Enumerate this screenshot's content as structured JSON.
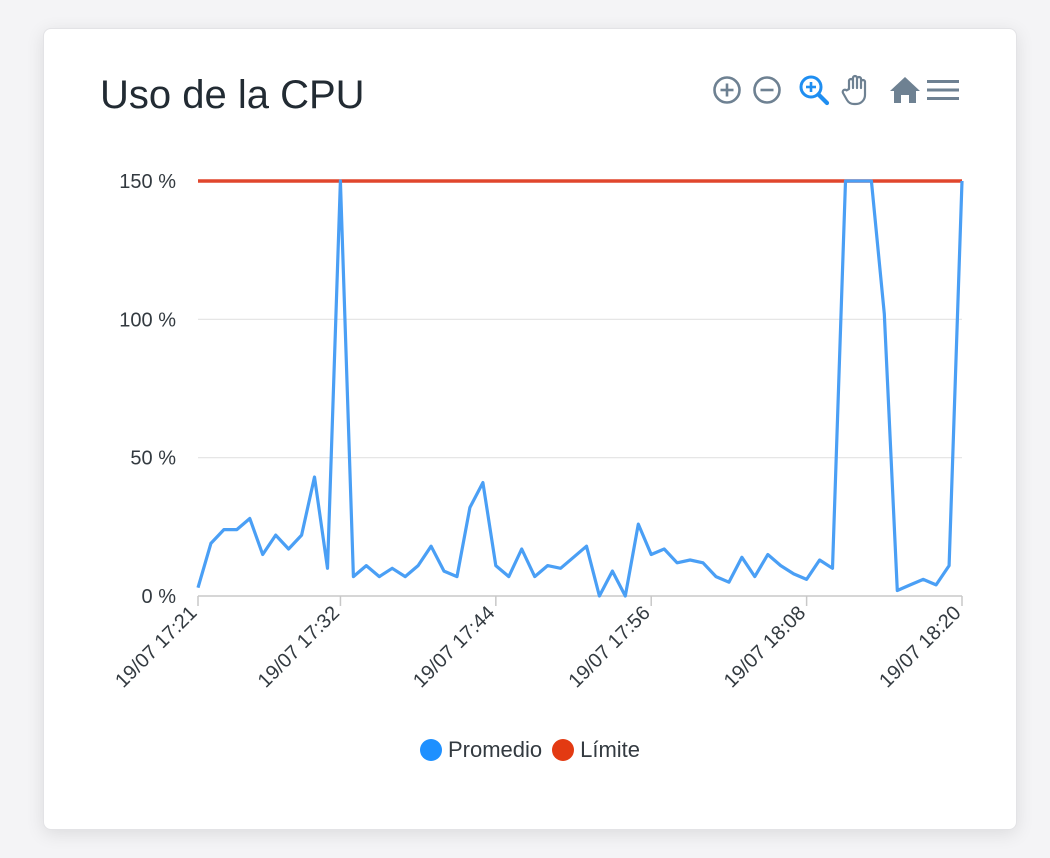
{
  "card": {
    "title": "Uso de la CPU"
  },
  "toolbar": [
    {
      "name": "zoom-in-icon"
    },
    {
      "name": "zoom-out-icon"
    },
    {
      "name": "selection-zoom-icon",
      "active": true
    },
    {
      "name": "pan-hand-icon"
    },
    {
      "name": "home-reset-icon"
    },
    {
      "name": "menu-icon"
    }
  ],
  "colors": {
    "promedio": "#4a9ff5",
    "limite": "#e0462d",
    "legend_promedio": "#1e90ff",
    "legend_limite": "#e33a12",
    "toolbar": "#6e8192",
    "toolbar_active": "#1f8ef1",
    "grid": "#e2e2e2",
    "axis_text": "#333a40"
  },
  "chart_data": {
    "type": "line",
    "title": "Uso de la CPU",
    "xlabel": "",
    "ylabel": "",
    "y_unit_suffix": " %",
    "ylim": [
      0,
      150
    ],
    "yticks": [
      0,
      50,
      100,
      150
    ],
    "ytick_labels": [
      "0 %",
      "50 %",
      "100 %",
      "150 %"
    ],
    "x_range": [
      "19/07 17:21",
      "19/07 18:20"
    ],
    "xtick_labels": [
      "19/07 17:21",
      "19/07 17:32",
      "19/07 17:44",
      "19/07 17:56",
      "19/07 18:08",
      "19/07 18:20"
    ],
    "grid": true,
    "legend_position": "bottom",
    "series": [
      {
        "name": "Promedio",
        "x": [
          "19/07 17:21",
          "19/07 17:22",
          "19/07 17:23",
          "19/07 17:24",
          "19/07 17:25",
          "19/07 17:26",
          "19/07 17:27",
          "19/07 17:28",
          "19/07 17:29",
          "19/07 17:30",
          "19/07 17:31",
          "19/07 17:32",
          "19/07 17:33",
          "19/07 17:34",
          "19/07 17:35",
          "19/07 17:36",
          "19/07 17:37",
          "19/07 17:38",
          "19/07 17:39",
          "19/07 17:40",
          "19/07 17:41",
          "19/07 17:42",
          "19/07 17:43",
          "19/07 17:44",
          "19/07 17:45",
          "19/07 17:46",
          "19/07 17:47",
          "19/07 17:48",
          "19/07 17:49",
          "19/07 17:50",
          "19/07 17:51",
          "19/07 17:52",
          "19/07 17:53",
          "19/07 17:54",
          "19/07 17:55",
          "19/07 17:56",
          "19/07 17:57",
          "19/07 17:58",
          "19/07 17:59",
          "19/07 18:00",
          "19/07 18:01",
          "19/07 18:02",
          "19/07 18:03",
          "19/07 18:04",
          "19/07 18:05",
          "19/07 18:06",
          "19/07 18:07",
          "19/07 18:08",
          "19/07 18:09",
          "19/07 18:10",
          "19/07 18:11",
          "19/07 18:12",
          "19/07 18:13",
          "19/07 18:14",
          "19/07 18:15",
          "19/07 18:16",
          "19/07 18:17",
          "19/07 18:18",
          "19/07 18:19",
          "19/07 18:20"
        ],
        "values": [
          3,
          19,
          24,
          24,
          28,
          15,
          22,
          17,
          22,
          43,
          10,
          150,
          7,
          11,
          7,
          10,
          7,
          11,
          18,
          9,
          7,
          32,
          41,
          11,
          7,
          17,
          7,
          11,
          10,
          14,
          18,
          0,
          9,
          0,
          26,
          15,
          17,
          12,
          13,
          12,
          7,
          5,
          14,
          7,
          15,
          11,
          8,
          6,
          13,
          10,
          150,
          150,
          150,
          102,
          2,
          4,
          6,
          4,
          11,
          150
        ]
      },
      {
        "name": "Límite",
        "x": [
          "19/07 17:21",
          "19/07 18:20"
        ],
        "values": [
          150,
          150
        ]
      }
    ]
  }
}
